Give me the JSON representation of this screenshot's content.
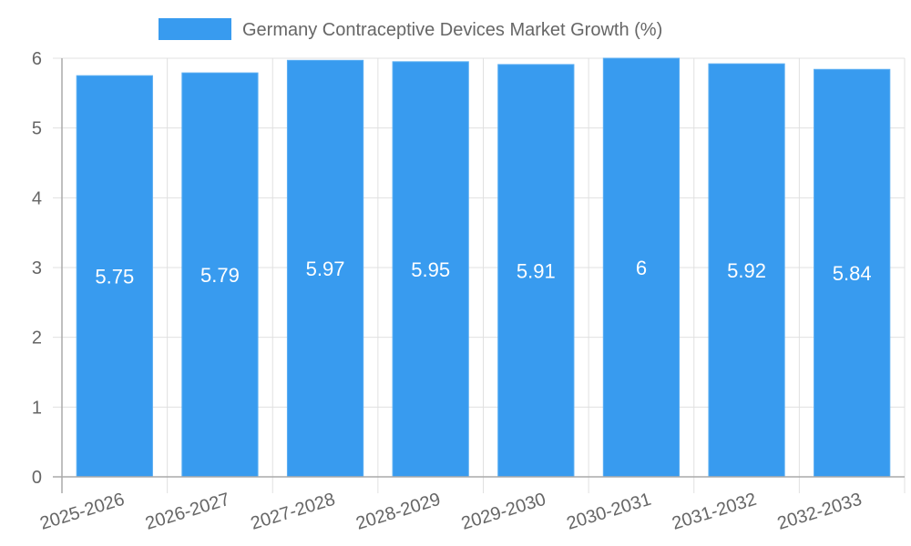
{
  "chart_data": {
    "type": "bar",
    "title": "",
    "xlabel": "",
    "ylabel": "",
    "categories": [
      "2025-2026",
      "2026-2027",
      "2027-2028",
      "2028-2029",
      "2029-2030",
      "2030-2031",
      "2031-2032",
      "2032-2033"
    ],
    "series": [
      {
        "name": "Germany Contraceptive Devices Market Growth (%)",
        "values": [
          5.75,
          5.79,
          5.97,
          5.95,
          5.91,
          6,
          5.92,
          5.84
        ],
        "color": "#389bef"
      }
    ],
    "data_labels": [
      "5.75",
      "5.79",
      "5.97",
      "5.95",
      "5.91",
      "6",
      "5.92",
      "5.84"
    ],
    "ylim": [
      0,
      6
    ],
    "yticks": [
      "0",
      "1",
      "2",
      "3",
      "4",
      "5",
      "6"
    ],
    "grid": true,
    "legend_position": "top-center"
  }
}
